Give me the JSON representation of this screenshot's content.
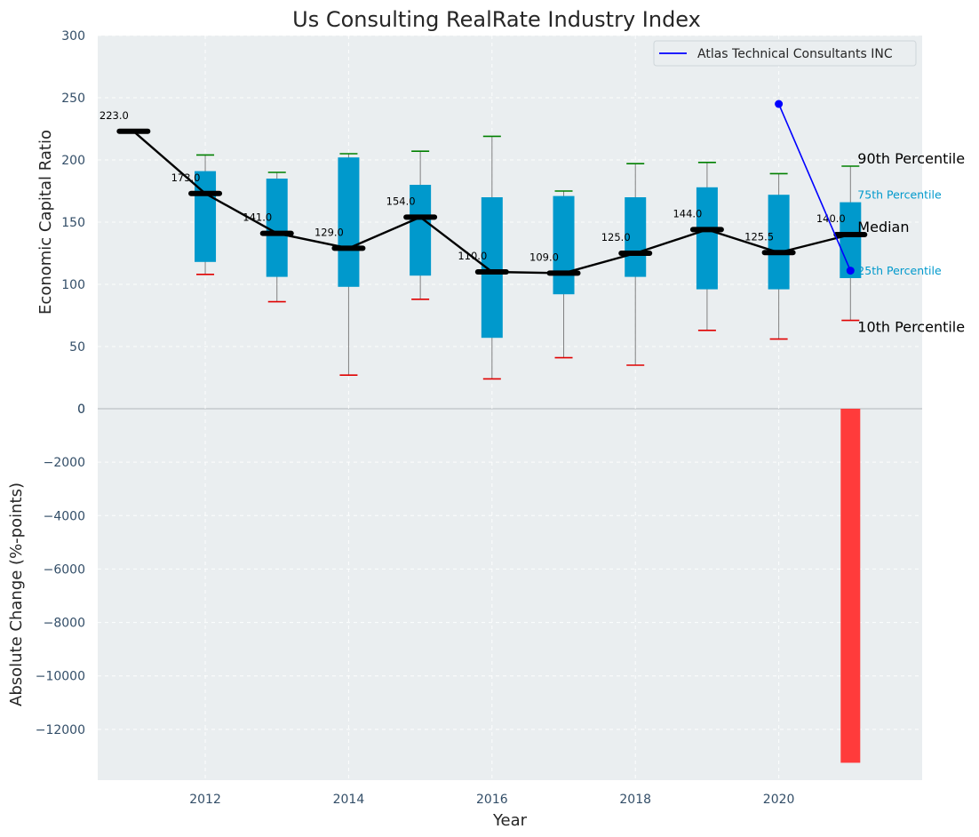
{
  "chart_data": {
    "type": "box",
    "title": "Us Consulting RealRate Industry Index",
    "xlabel": "Year",
    "top_panel": {
      "ylabel": "Economic Capital Ratio",
      "ylim": [
        0,
        300
      ],
      "yticks": [
        "0",
        "50",
        "100",
        "150",
        "200",
        "250",
        "300"
      ],
      "years": [
        2011,
        2012,
        2013,
        2014,
        2015,
        2016,
        2017,
        2018,
        2019,
        2020,
        2021
      ],
      "median": [
        223.0,
        173.0,
        141.0,
        129.0,
        154.0,
        110.0,
        109.0,
        125.0,
        144.0,
        125.5,
        140.0
      ],
      "median_labels": [
        "223.0",
        "173.0",
        "141.0",
        "129.0",
        "154.0",
        "110.0",
        "109.0",
        "125.0",
        "144.0",
        "125.5",
        "140.0"
      ],
      "p10": [
        null,
        108,
        86,
        27,
        88,
        24,
        41,
        35,
        63,
        56,
        71
      ],
      "p25": [
        null,
        118,
        106,
        98,
        107,
        57,
        92,
        106,
        96,
        96,
        105
      ],
      "p75": [
        null,
        191,
        185,
        202,
        180,
        170,
        171,
        170,
        178,
        172,
        166
      ],
      "p90": [
        null,
        204,
        190,
        205,
        207,
        219,
        175,
        197,
        198,
        189,
        195
      ],
      "company_series": {
        "name": "Atlas Technical Consultants INC",
        "x": [
          2020,
          2021
        ],
        "y": [
          245,
          111
        ],
        "color": "#0000ff"
      },
      "side_labels": {
        "p90": "90th Percentile",
        "p75": "75th Percentile",
        "median": "Median",
        "p25": "25th Percentile",
        "p10": "10th Percentile"
      }
    },
    "bottom_panel": {
      "type": "bar",
      "ylabel": "Absolute Change (%-points)",
      "ylim": [
        -13900,
        0
      ],
      "yticks": [
        "0",
        "−2000",
        "−4000",
        "−6000",
        "−8000",
        "−10000",
        "−12000"
      ],
      "x": [
        2021
      ],
      "values": [
        -13250
      ],
      "color": "#ff3b3b"
    },
    "xticks": [
      "2012",
      "2014",
      "2016",
      "2018",
      "2020"
    ],
    "xlim": [
      2010.5,
      2022.0
    ],
    "colors": {
      "background": "#eaeef0",
      "box": "#0099cc",
      "median": "#000000",
      "p90_cap": "#008000",
      "p10_cap": "#e00000",
      "whisker": "#808080",
      "tick_text": "#334e68"
    },
    "legend": {
      "placement": "top-right"
    }
  }
}
